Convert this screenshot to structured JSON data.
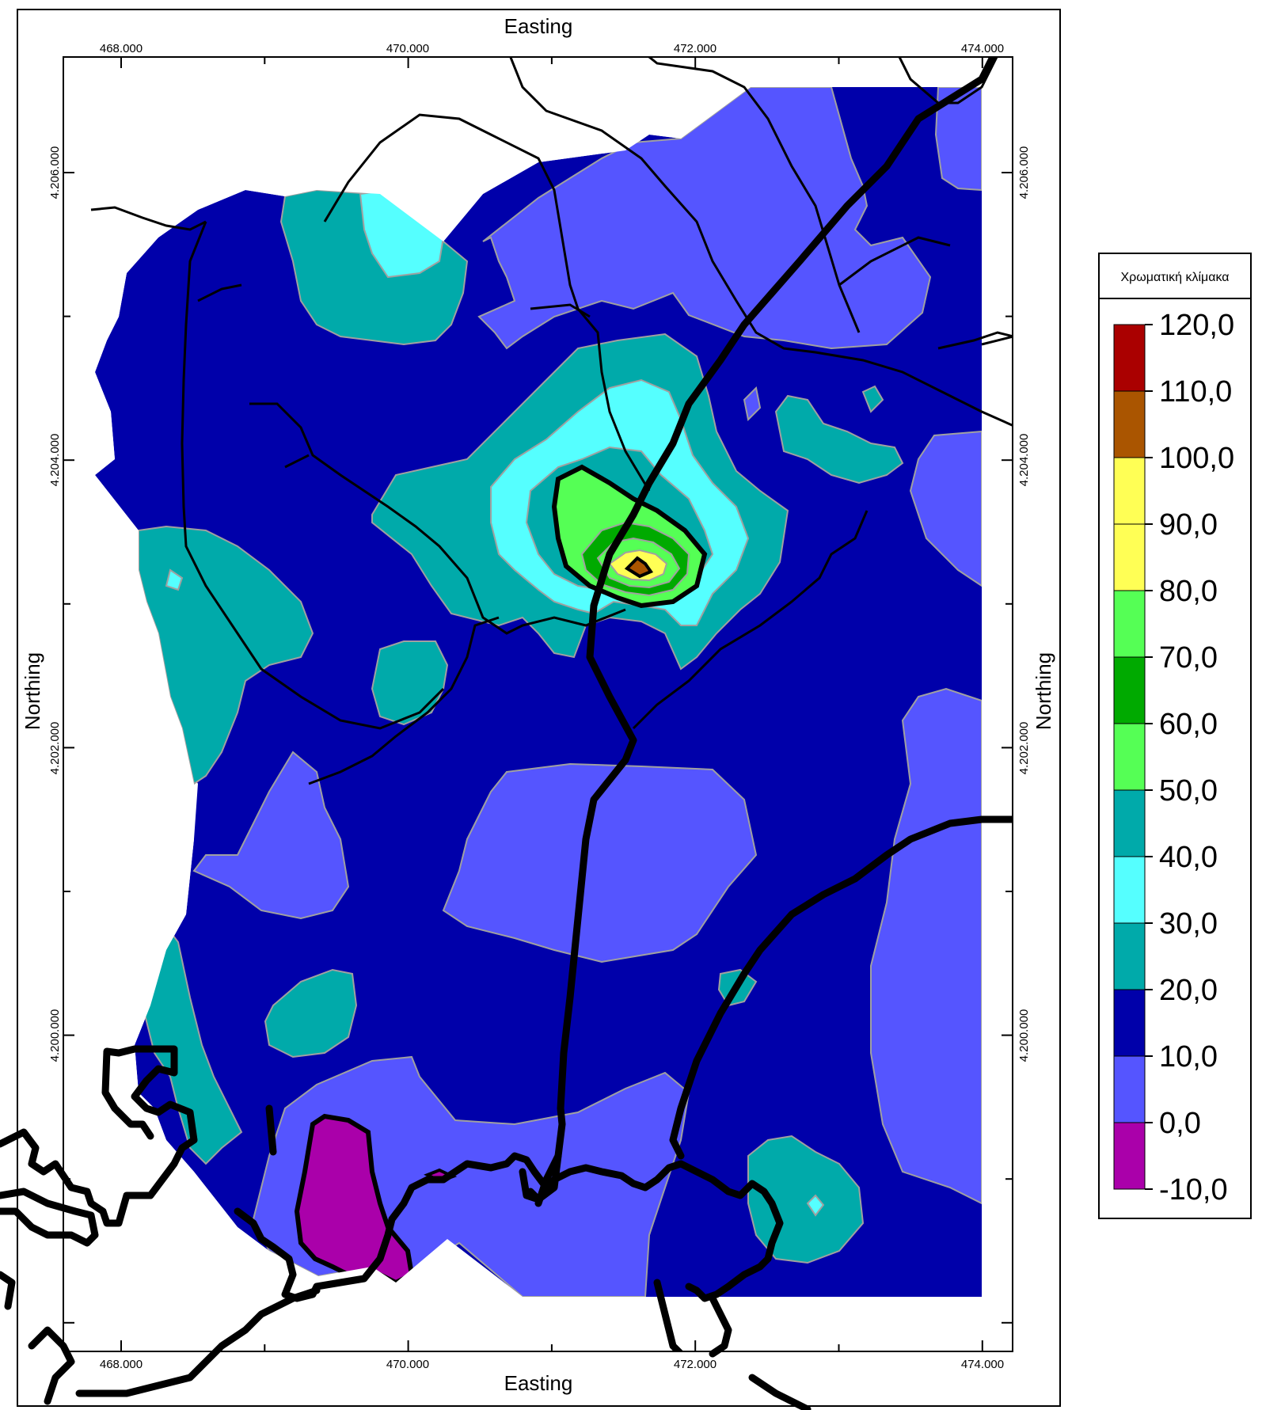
{
  "map": {
    "top_title": "Easting",
    "bottom_title": "Easting",
    "left_title": "Northing",
    "right_title": "Northing",
    "x_ticks": [
      "468.000",
      "470.000",
      "472.000",
      "474.000"
    ],
    "y_ticks": [
      "4.206.000",
      "4.204.000",
      "4.202.000",
      "4.200.000"
    ]
  },
  "legend": {
    "title": "Χρωματική κλίμακα",
    "levels": [
      "120,0",
      "110,0",
      "100,0",
      "90,0",
      "80,0",
      "70,0",
      "60,0",
      "50,0",
      "40,0",
      "30,0",
      "20,0",
      "10,0",
      "0,0",
      "-10,0"
    ],
    "colors": [
      "#aa0000",
      "#aa5500",
      "#ffff55",
      "#ffff55",
      "#55ff55",
      "#00aa00",
      "#55ff55",
      "#00aaaa",
      "#55ffff",
      "#00aaaa",
      "#0000aa",
      "#5555ff",
      "#aa00aa"
    ]
  },
  "palette": {
    "class_-10_0": "#aa00aa",
    "class_0_10": "#5555ff",
    "class_10_20": "#0000aa",
    "class_20_30": "#00aaaa",
    "class_30_40": "#55ffff",
    "class_40_50": "#00aaaa",
    "class_50_60": "#55ff55",
    "class_60_70": "#00aa00",
    "class_70_80": "#55ff55",
    "class_80_100": "#ffff55",
    "class_100_110": "#aa5500",
    "contour_line": "#a0a0a0"
  }
}
